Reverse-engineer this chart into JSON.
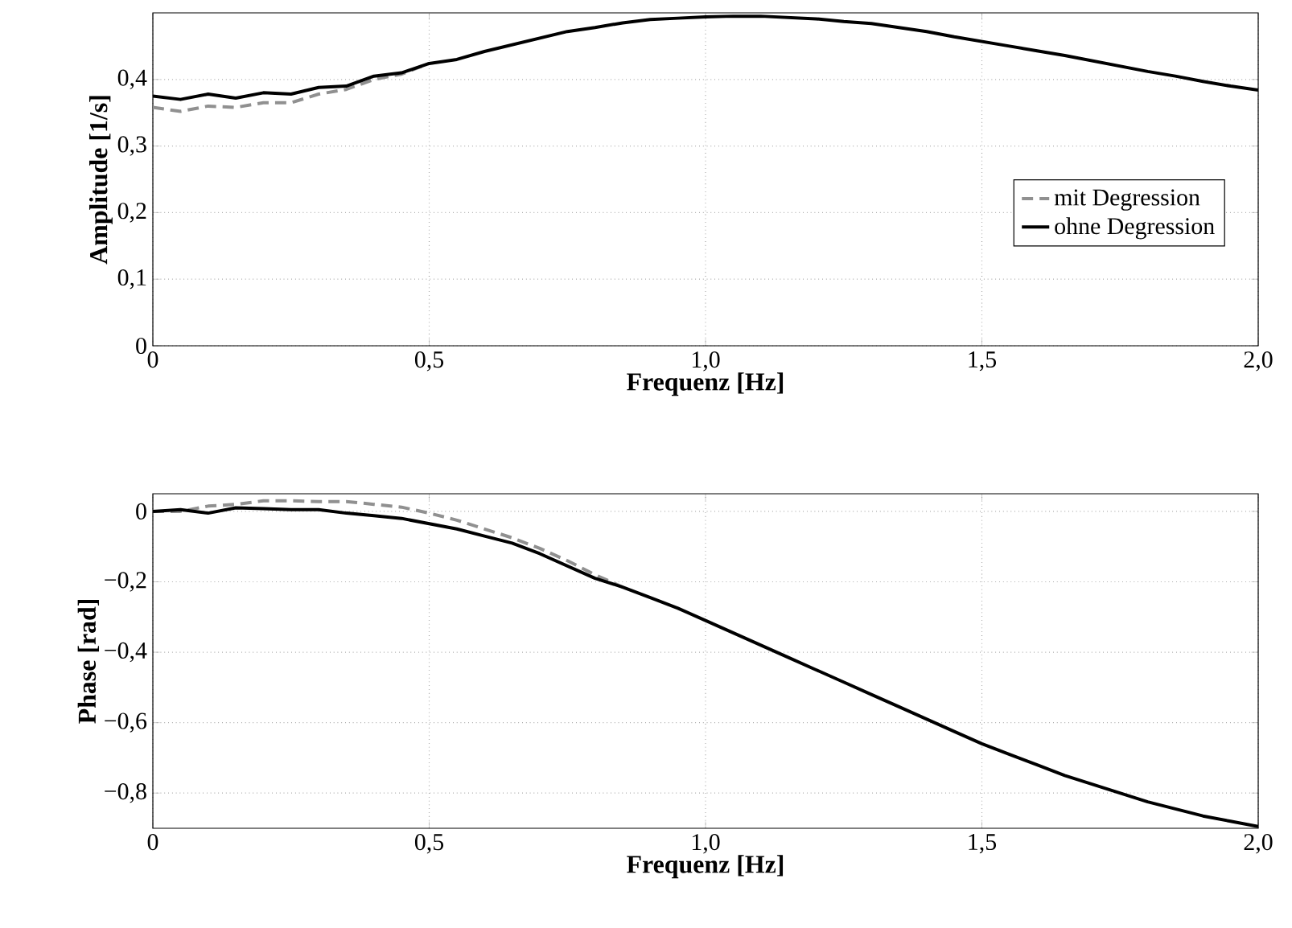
{
  "chart_data": [
    {
      "type": "line",
      "xlabel": "Frequenz [Hz]",
      "ylabel": "Amplitude [1/s]",
      "x": [
        0,
        0.05,
        0.1,
        0.15,
        0.2,
        0.25,
        0.3,
        0.35,
        0.4,
        0.45,
        0.5,
        0.55,
        0.6,
        0.65,
        0.7,
        0.75,
        0.8,
        0.85,
        0.9,
        0.95,
        1.0,
        1.05,
        1.1,
        1.15,
        1.2,
        1.25,
        1.3,
        1.35,
        1.4,
        1.45,
        1.5,
        1.55,
        1.6,
        1.65,
        1.7,
        1.75,
        1.8,
        1.85,
        1.9,
        1.95,
        2.0
      ],
      "series": [
        {
          "name": "mit Degression",
          "color": "#909090",
          "line_style": "dashed",
          "values": [
            0.358,
            0.352,
            0.36,
            0.358,
            0.365,
            0.365,
            0.378,
            0.385,
            0.4,
            0.408,
            0.424,
            null,
            null,
            null,
            null,
            null,
            null,
            null,
            null,
            null,
            null,
            null,
            null,
            null,
            null,
            null,
            null,
            null,
            null,
            null,
            null,
            null,
            null,
            null,
            null,
            null,
            null,
            null,
            null,
            null,
            null
          ]
        },
        {
          "name": "ohne Degression",
          "color": "#000000",
          "line_style": "solid",
          "values": [
            0.375,
            0.37,
            0.378,
            0.372,
            0.38,
            0.378,
            0.388,
            0.39,
            0.405,
            0.41,
            0.424,
            0.43,
            0.442,
            0.452,
            0.462,
            0.472,
            0.478,
            0.485,
            0.49,
            0.492,
            0.494,
            0.495,
            0.495,
            0.493,
            0.491,
            0.487,
            0.484,
            0.478,
            0.472,
            0.464,
            0.457,
            0.45,
            0.443,
            0.436,
            0.428,
            0.42,
            0.412,
            0.405,
            0.397,
            0.39,
            0.384
          ]
        }
      ],
      "xlim": [
        0,
        2.0
      ],
      "xticks": [
        0,
        {
          "value": 0.5,
          "label": "0,5"
        },
        {
          "value": 1.0,
          "label": "1,0"
        },
        {
          "value": 1.5,
          "label": "1,5"
        },
        {
          "value": 2.0,
          "label": "2,0"
        }
      ],
      "ylim": [
        0,
        0.5
      ],
      "yticks": [
        0,
        {
          "value": 0.1,
          "label": "0,1"
        },
        {
          "value": 0.2,
          "label": "0,2"
        },
        {
          "value": 0.3,
          "label": "0,3"
        },
        {
          "value": 0.4,
          "label": "0,4"
        }
      ],
      "grid": true,
      "legend": "right",
      "marker": "none"
    },
    {
      "type": "line",
      "xlabel": "Frequenz [Hz]",
      "ylabel": "Phase [rad]",
      "x": [
        0,
        0.05,
        0.1,
        0.15,
        0.2,
        0.25,
        0.3,
        0.35,
        0.4,
        0.45,
        0.5,
        0.55,
        0.6,
        0.65,
        0.7,
        0.75,
        0.8,
        0.85,
        0.9,
        0.95,
        1.0,
        1.05,
        1.1,
        1.15,
        1.2,
        1.25,
        1.3,
        1.35,
        1.4,
        1.45,
        1.5,
        1.55,
        1.6,
        1.65,
        1.7,
        1.75,
        1.8,
        1.85,
        1.9,
        1.95,
        2.0
      ],
      "series": [
        {
          "color": "#909090",
          "line_style": "dashed",
          "values": [
            0,
            0.0,
            0.015,
            0.02,
            0.03,
            0.03,
            0.028,
            0.028,
            0.02,
            0.012,
            -0.005,
            -0.025,
            -0.05,
            -0.075,
            -0.105,
            -0.14,
            -0.18,
            -0.215,
            null,
            null,
            null,
            null,
            null,
            null,
            null,
            null,
            null,
            null,
            null,
            null,
            null,
            null,
            null,
            null,
            null,
            null,
            null,
            null,
            null,
            null,
            null
          ]
        },
        {
          "color": "#000000",
          "line_style": "solid",
          "values": [
            0,
            0.005,
            -0.005,
            0.01,
            0.008,
            0.005,
            0.005,
            -0.005,
            -0.012,
            -0.02,
            -0.035,
            -0.05,
            -0.07,
            -0.09,
            -0.12,
            -0.155,
            -0.19,
            -0.215,
            -0.245,
            -0.275,
            -0.31,
            -0.345,
            -0.38,
            -0.415,
            -0.45,
            -0.485,
            -0.52,
            -0.555,
            -0.59,
            -0.625,
            -0.66,
            -0.69,
            -0.72,
            -0.75,
            -0.775,
            -0.8,
            -0.825,
            -0.845,
            -0.865,
            -0.88,
            -0.895
          ]
        }
      ],
      "xlim": [
        0,
        2.0
      ],
      "xticks": [
        0,
        {
          "value": 0.5,
          "label": "0,5"
        },
        {
          "value": 1.0,
          "label": "1,0"
        },
        {
          "value": 1.5,
          "label": "1,5"
        },
        {
          "value": 2.0,
          "label": "2,0"
        }
      ],
      "ylim": [
        -0.9,
        0.05
      ],
      "yticks": [
        0,
        {
          "value": -0.2,
          "label": "−0,2"
        },
        {
          "value": -0.4,
          "label": "−0,4"
        },
        {
          "value": -0.6,
          "label": "−0,6"
        },
        {
          "value": -0.8,
          "label": "−0,8"
        }
      ],
      "grid": true,
      "marker": "none"
    }
  ]
}
